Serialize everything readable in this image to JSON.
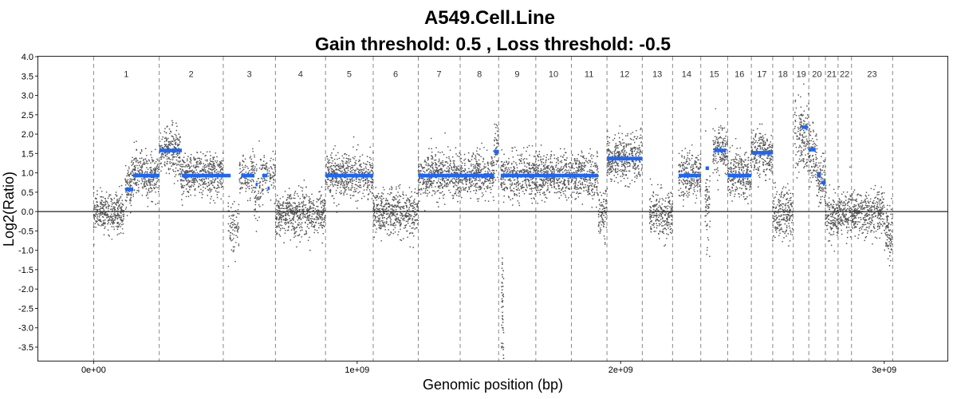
{
  "chart_data": {
    "type": "scatter",
    "title": "A549.Cell.Line",
    "subtitle": "Gain threshold:  0.5 , Loss threshold: -0.5",
    "xlabel": "Genomic position (bp)",
    "ylabel": "Log2(Ratio)",
    "xlim": [
      -210000000,
      3240000000
    ],
    "ylim": [
      -3.85,
      4.0
    ],
    "x_ticks": [
      0,
      1000000000,
      2000000000,
      3000000000
    ],
    "x_tick_labels": [
      "0e+00",
      "1e+09",
      "2e+09",
      "3e+09"
    ],
    "y_ticks": [
      4.0,
      3.5,
      3.0,
      2.5,
      2.0,
      1.5,
      1.0,
      0.5,
      0.0,
      -0.5,
      -1.0,
      -1.5,
      -2.0,
      -2.5,
      -3.0,
      -3.5
    ],
    "y_tick_labels": [
      "4.0",
      "3.5",
      "3.0",
      "2.5",
      "2.0",
      "1.5",
      "1.0",
      "0.5",
      "0.0",
      "-0.5",
      "-1.0",
      "-1.5",
      "-2.0",
      "-2.5",
      "-3.0",
      "-3.5"
    ],
    "zero_line": 0,
    "grid": false,
    "chromosome_boundaries": [
      0,
      249000000,
      492000000,
      690000000,
      880000000,
      1061000000,
      1232000000,
      1391000000,
      1537000000,
      1678000000,
      1813000000,
      1948000000,
      2082000000,
      2197000000,
      2304000000,
      2406000000,
      2496000000,
      2577000000,
      2655000000,
      2714000000,
      2777000000,
      2825000000,
      2876000000,
      3032000000
    ],
    "chromosomes": [
      {
        "label": "1",
        "mid": 124000000
      },
      {
        "label": "2",
        "mid": 370000000
      },
      {
        "label": "3",
        "mid": 591000000
      },
      {
        "label": "4",
        "mid": 785000000
      },
      {
        "label": "5",
        "mid": 970000000
      },
      {
        "label": "6",
        "mid": 1146000000
      },
      {
        "label": "7",
        "mid": 1311000000
      },
      {
        "label": "8",
        "mid": 1464000000
      },
      {
        "label": "9",
        "mid": 1607000000
      },
      {
        "label": "10",
        "mid": 1745000000
      },
      {
        "label": "11",
        "mid": 1880000000
      },
      {
        "label": "12",
        "mid": 2015000000
      },
      {
        "label": "13",
        "mid": 2139000000
      },
      {
        "label": "14",
        "mid": 2250000000
      },
      {
        "label": "15",
        "mid": 2355000000
      },
      {
        "label": "16",
        "mid": 2451000000
      },
      {
        "label": "17",
        "mid": 2536000000
      },
      {
        "label": "18",
        "mid": 2616000000
      },
      {
        "label": "19",
        "mid": 2685000000
      },
      {
        "label": "20",
        "mid": 2745000000
      },
      {
        "label": "21",
        "mid": 2801000000
      },
      {
        "label": "22",
        "mid": 2850000000
      },
      {
        "label": "23",
        "mid": 2954000000
      }
    ],
    "point_color": "#555555",
    "segment_color": "#1a66ff",
    "point_clusters": [
      {
        "x0": 0,
        "x1": 115000000,
        "mean": -0.02,
        "sd": 0.24,
        "n": 340
      },
      {
        "x0": 120000000,
        "x1": 143000000,
        "mean": 0.57,
        "sd": 0.28,
        "n": 70
      },
      {
        "x0": 143000000,
        "x1": 249000000,
        "mean": 0.93,
        "sd": 0.28,
        "n": 320
      },
      {
        "x0": 249000000,
        "x1": 330000000,
        "mean": 1.58,
        "sd": 0.3,
        "n": 240
      },
      {
        "x0": 330000000,
        "x1": 492000000,
        "mean": 0.93,
        "sd": 0.27,
        "n": 470
      },
      {
        "x0": 510000000,
        "x1": 553000000,
        "mean": -0.35,
        "sd": 0.32,
        "n": 80
      },
      {
        "x0": 553000000,
        "x1": 610000000,
        "mean": 0.92,
        "sd": 0.27,
        "n": 120
      },
      {
        "x0": 610000000,
        "x1": 640000000,
        "mean": 0.6,
        "sd": 0.45,
        "n": 70
      },
      {
        "x0": 640000000,
        "x1": 690000000,
        "mean": 0.9,
        "sd": 0.3,
        "n": 90
      },
      {
        "x0": 690000000,
        "x1": 880000000,
        "mean": -0.07,
        "sd": 0.28,
        "n": 560
      },
      {
        "x0": 880000000,
        "x1": 1061000000,
        "mean": 0.93,
        "sd": 0.28,
        "n": 540
      },
      {
        "x0": 1061000000,
        "x1": 1232000000,
        "mean": -0.03,
        "sd": 0.29,
        "n": 500
      },
      {
        "x0": 1232000000,
        "x1": 1391000000,
        "mean": 0.93,
        "sd": 0.29,
        "n": 470
      },
      {
        "x0": 1391000000,
        "x1": 1520000000,
        "mean": 0.93,
        "sd": 0.28,
        "n": 380
      },
      {
        "x0": 1520000000,
        "x1": 1537000000,
        "mean": 1.55,
        "sd": 0.35,
        "n": 50
      },
      {
        "x0": 1545000000,
        "x1": 1678000000,
        "mean": 0.93,
        "sd": 0.28,
        "n": 390
      },
      {
        "x0": 1678000000,
        "x1": 1813000000,
        "mean": 0.93,
        "sd": 0.28,
        "n": 400
      },
      {
        "x0": 1813000000,
        "x1": 1915000000,
        "mean": 0.93,
        "sd": 0.28,
        "n": 300
      },
      {
        "x0": 1915000000,
        "x1": 1948000000,
        "mean": -0.1,
        "sd": 0.3,
        "n": 90
      },
      {
        "x0": 1948000000,
        "x1": 2082000000,
        "mean": 1.37,
        "sd": 0.3,
        "n": 400
      },
      {
        "x0": 2110000000,
        "x1": 2197000000,
        "mean": -0.05,
        "sd": 0.3,
        "n": 260
      },
      {
        "x0": 2220000000,
        "x1": 2304000000,
        "mean": 0.93,
        "sd": 0.28,
        "n": 250
      },
      {
        "x0": 2320000000,
        "x1": 2340000000,
        "mean": 0.1,
        "sd": 0.6,
        "n": 60
      },
      {
        "x0": 2350000000,
        "x1": 2406000000,
        "mean": 1.58,
        "sd": 0.3,
        "n": 170
      },
      {
        "x0": 2406000000,
        "x1": 2496000000,
        "mean": 0.93,
        "sd": 0.3,
        "n": 270
      },
      {
        "x0": 2496000000,
        "x1": 2577000000,
        "mean": 1.52,
        "sd": 0.3,
        "n": 240
      },
      {
        "x0": 2577000000,
        "x1": 2655000000,
        "mean": -0.07,
        "sd": 0.3,
        "n": 230
      },
      {
        "x0": 2660000000,
        "x1": 2714000000,
        "mean": 2.0,
        "sd": 0.45,
        "n": 160
      },
      {
        "x0": 2714000000,
        "x1": 2745000000,
        "mean": 1.4,
        "sd": 0.35,
        "n": 90
      },
      {
        "x0": 2745000000,
        "x1": 2777000000,
        "mean": 0.8,
        "sd": 0.3,
        "n": 90
      },
      {
        "x0": 2777000000,
        "x1": 2825000000,
        "mean": -0.15,
        "sd": 0.3,
        "n": 140
      },
      {
        "x0": 2825000000,
        "x1": 2876000000,
        "mean": -0.05,
        "sd": 0.28,
        "n": 150
      },
      {
        "x0": 2876000000,
        "x1": 3000000000,
        "mean": -0.05,
        "sd": 0.28,
        "n": 360
      },
      {
        "x0": 3000000000,
        "x1": 3032000000,
        "mean": -0.5,
        "sd": 0.35,
        "n": 90
      }
    ],
    "deletion_points": {
      "x0": 1548000000,
      "x1": 1556000000,
      "y_min": -3.9,
      "y_max": -1.2,
      "n": 45
    },
    "segments": [
      {
        "x0": 120000000,
        "x1": 150000000,
        "y": 0.57
      },
      {
        "x0": 150000000,
        "x1": 249000000,
        "y": 0.93
      },
      {
        "x0": 249000000,
        "x1": 335000000,
        "y": 1.58
      },
      {
        "x0": 335000000,
        "x1": 520000000,
        "y": 0.93
      },
      {
        "x0": 560000000,
        "x1": 610000000,
        "y": 0.93
      },
      {
        "x0": 615000000,
        "x1": 622000000,
        "y": 0.7
      },
      {
        "x0": 640000000,
        "x1": 660000000,
        "y": 0.93
      },
      {
        "x0": 660000000,
        "x1": 668000000,
        "y": 0.6
      },
      {
        "x0": 880000000,
        "x1": 1061000000,
        "y": 0.93
      },
      {
        "x0": 1232000000,
        "x1": 1520000000,
        "y": 0.93
      },
      {
        "x0": 1520000000,
        "x1": 1537000000,
        "y": 1.55
      },
      {
        "x0": 1545000000,
        "x1": 1915000000,
        "y": 0.93
      },
      {
        "x0": 1948000000,
        "x1": 2082000000,
        "y": 1.37
      },
      {
        "x0": 2220000000,
        "x1": 2304000000,
        "y": 0.93
      },
      {
        "x0": 2322000000,
        "x1": 2335000000,
        "y": 1.12
      },
      {
        "x0": 2355000000,
        "x1": 2400000000,
        "y": 1.58
      },
      {
        "x0": 2406000000,
        "x1": 2496000000,
        "y": 0.93
      },
      {
        "x0": 2500000000,
        "x1": 2577000000,
        "y": 1.52
      },
      {
        "x0": 2688000000,
        "x1": 2710000000,
        "y": 2.18
      },
      {
        "x0": 2714000000,
        "x1": 2740000000,
        "y": 1.6
      },
      {
        "x0": 2745000000,
        "x1": 2760000000,
        "y": 0.95
      },
      {
        "x0": 2760000000,
        "x1": 2777000000,
        "y": 0.75
      }
    ]
  }
}
